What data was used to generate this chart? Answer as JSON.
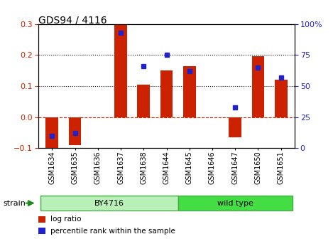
{
  "title": "GDS94 / 4116",
  "samples": [
    "GSM1634",
    "GSM1635",
    "GSM1636",
    "GSM1637",
    "GSM1638",
    "GSM1644",
    "GSM1645",
    "GSM1646",
    "GSM1647",
    "GSM1650",
    "GSM1651"
  ],
  "log_ratio": [
    -0.12,
    -0.09,
    0.0,
    0.3,
    0.105,
    0.15,
    0.165,
    0.0,
    -0.065,
    0.195,
    0.12
  ],
  "percentile_rank": [
    10,
    12,
    null,
    93,
    66,
    75,
    62,
    null,
    33,
    65,
    57
  ],
  "ylim_left": [
    -0.1,
    0.3
  ],
  "ylim_right": [
    0,
    100
  ],
  "yticks_left": [
    -0.1,
    0.0,
    0.1,
    0.2,
    0.3
  ],
  "yticks_right": [
    0,
    25,
    50,
    75,
    100
  ],
  "bar_color": "#CC2200",
  "dot_color": "#2222CC",
  "background_color": "#ffffff",
  "plot_bg": "#ffffff",
  "zero_line_color": "#CC2200",
  "strain_groups": [
    {
      "label": "BY4716",
      "start": 0,
      "end": 5,
      "color": "#B8F0B8",
      "edge_color": "#44AA44"
    },
    {
      "label": "wild type",
      "start": 6,
      "end": 10,
      "color": "#44DD44",
      "edge_color": "#44AA44"
    }
  ],
  "strain_label": "strain",
  "legend_items": [
    {
      "label": "log ratio",
      "color": "#CC2200"
    },
    {
      "label": "percentile rank within the sample",
      "color": "#2222CC"
    }
  ]
}
